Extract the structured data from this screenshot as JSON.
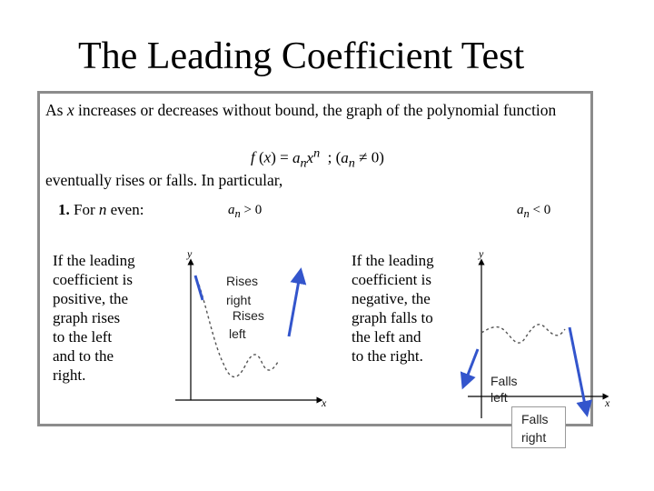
{
  "title": "The Leading Coefficient Test",
  "intro": "As x increases or decreases without bound, the graph of the polynomial function",
  "formula": "f (x) = anxn ; (an ≠ 0)",
  "eventually": "eventually rises or falls. In particular,",
  "case_label": "1. For n even:",
  "cond_positive": "an > 0",
  "cond_negative": "an < 0",
  "desc_positive": "If the leading\ncoefficient is\npositive, the\ngraph rises\nto the left\nand to the\nright.",
  "desc_negative": "If the leading\ncoefficient is\nnegative, the\ngraph falls to\nthe left and\nto the right.",
  "graph1": {
    "y_label": "y",
    "x_label": "x",
    "rises_right": "Rises\nright",
    "rises_left": " Rises\nleft"
  },
  "graph2": {
    "y_label": "y",
    "x_label": "x",
    "falls_left": "Falls\nleft",
    "falls_right": "Falls\nright"
  },
  "colors": {
    "curve": "#3355cc",
    "border": "#8c8c8c"
  }
}
